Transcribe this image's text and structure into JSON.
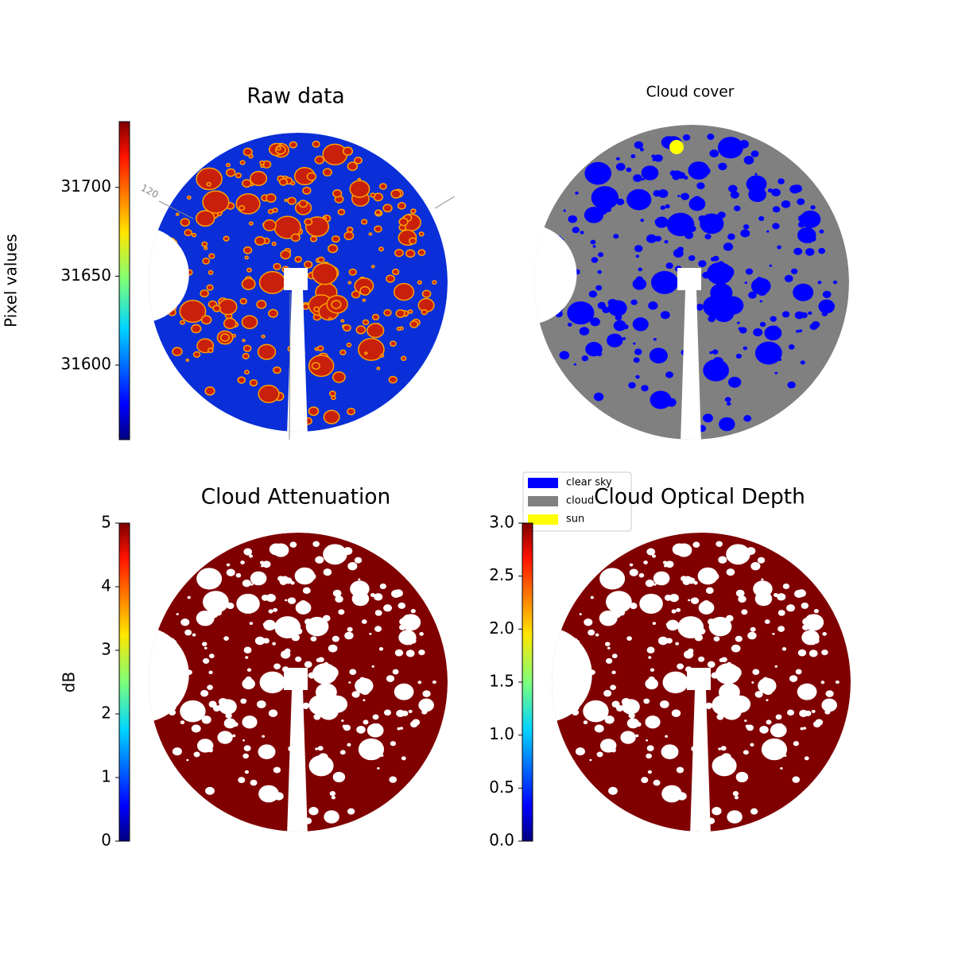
{
  "chart_data": [
    {
      "type": "image",
      "title": "Raw data",
      "ylabel": "Pixel values",
      "ylim": [
        31558,
        31737
      ],
      "yticks": [
        31600,
        31650,
        31700
      ],
      "colormap": "jet",
      "annotation": "120",
      "color": "#0a2fd8",
      "hole_color": "#c8200a"
    },
    {
      "type": "image",
      "title": "Cloud cover",
      "color": "#808080",
      "legend": [
        {
          "name": "clear sky",
          "color": "#0000ff"
        },
        {
          "name": "cloud",
          "color": "#808080"
        },
        {
          "name": "sun",
          "color": "#ffff00"
        }
      ]
    },
    {
      "type": "image",
      "title": "Cloud Attenuation",
      "ylabel": "dB",
      "ylim": [
        0,
        5
      ],
      "yticks": [
        0,
        1,
        2,
        3,
        4,
        5
      ],
      "colormap": "jet",
      "color": "#800000",
      "hole_color": "#ffffff"
    },
    {
      "type": "image",
      "title": "Cloud Optical Depth",
      "ylim": [
        0,
        3
      ],
      "colormap": "jet",
      "color": "#800000",
      "hole_color": "#ffffff",
      "yticks": [
        {
          "value": 0,
          "label": "0.0"
        },
        {
          "value": 0.5,
          "label": "0.5"
        },
        {
          "value": 1,
          "label": "1.0"
        },
        {
          "value": 1.5,
          "label": "1.5"
        },
        {
          "value": 2,
          "label": "2.0"
        },
        {
          "value": 2.5,
          "label": "2.5"
        },
        {
          "value": 3,
          "label": "3.0"
        }
      ]
    }
  ]
}
